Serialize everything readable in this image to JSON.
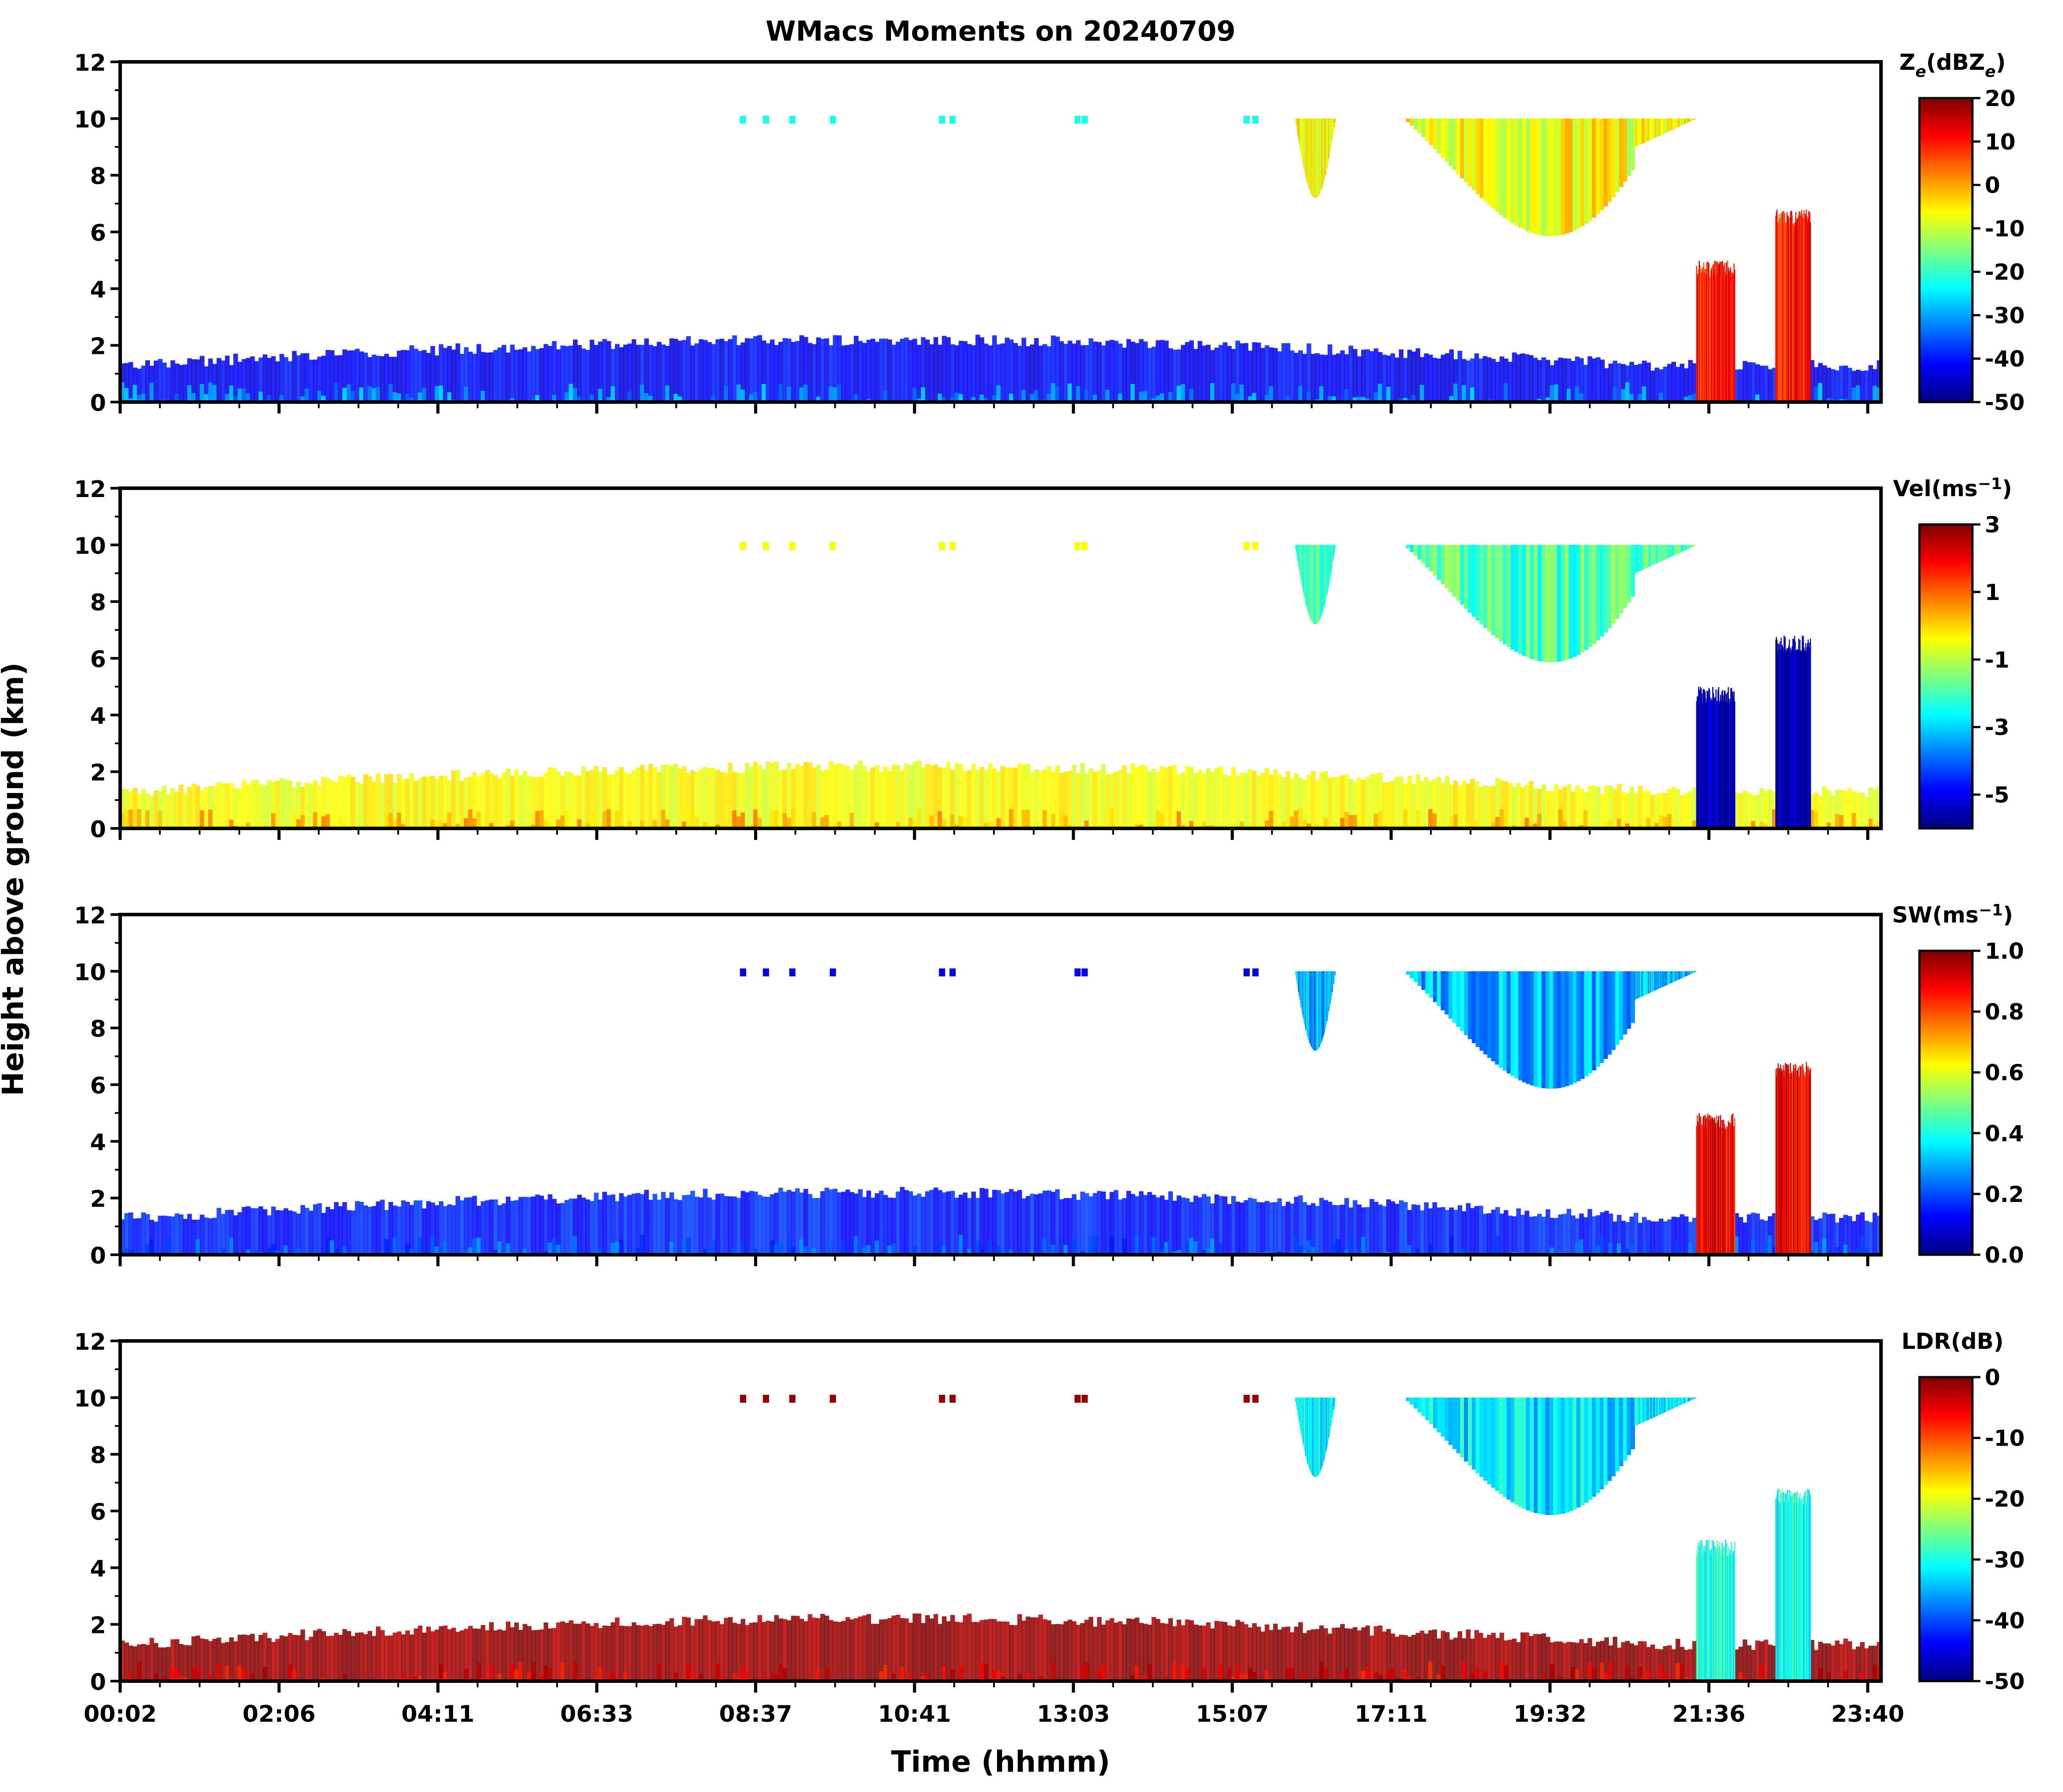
{
  "chart_data": {
    "type": "heatmap",
    "title": "WMacs Moments on 20240709",
    "xlabel": "Time (hhmm)",
    "ylabel": "Height above ground (km)",
    "x_tick_labels": [
      "00:02",
      "02:06",
      "04:11",
      "06:33",
      "08:37",
      "10:41",
      "13:03",
      "15:07",
      "17:11",
      "19:32",
      "21:36",
      "23:40"
    ],
    "ylim": [
      0,
      12
    ],
    "y_ticks": [
      0,
      2,
      4,
      6,
      8,
      10,
      12
    ],
    "panels": [
      {
        "colorbar_label": "Ze(dBZe)",
        "label_main": "Z",
        "label_sub": "e",
        "label_mid": "(dBZ",
        "label_sub2": "e",
        "label_end": ")",
        "clim": [
          -50,
          20
        ],
        "cbar_ticks": [
          "20",
          "10",
          "0",
          "-10",
          "-20",
          "-30",
          "-40",
          "-50"
        ],
        "cbar_tick_values": [
          20,
          10,
          0,
          -10,
          -20,
          -30,
          -40,
          -50
        ]
      },
      {
        "colorbar_label": "Vel(ms-1)",
        "label_main": "Vel(ms",
        "label_sup": "−1",
        "label_end": ")",
        "clim": [
          -6,
          3
        ],
        "cbar_ticks": [
          "3",
          "1",
          "-1",
          "-3",
          "-5"
        ],
        "cbar_tick_values": [
          3,
          1,
          -1,
          -3,
          -5
        ]
      },
      {
        "colorbar_label": "SW(ms-1)",
        "label_main": "SW(ms",
        "label_sup": "−1",
        "label_end": ")",
        "clim": [
          0,
          1
        ],
        "cbar_ticks": [
          "1.0",
          "0.8",
          "0.6",
          "0.4",
          "0.2",
          "0.0"
        ],
        "cbar_tick_values": [
          1.0,
          0.8,
          0.6,
          0.4,
          0.2,
          0.0
        ]
      },
      {
        "colorbar_label": "LDR(dB)",
        "label_main": "LDR(dB)",
        "clim": [
          -50,
          0
        ],
        "cbar_ticks": [
          "0",
          "-10",
          "-20",
          "-30",
          "-40",
          "-50"
        ],
        "cbar_tick_values": [
          0,
          -10,
          -20,
          -30,
          -40,
          -50
        ]
      }
    ],
    "colormap": "jet",
    "jet_stops": [
      "#00007f",
      "#0000ff",
      "#007fff",
      "#00ffff",
      "#7fff7f",
      "#ffff00",
      "#ff7f00",
      "#ff0000",
      "#7f0000"
    ]
  }
}
